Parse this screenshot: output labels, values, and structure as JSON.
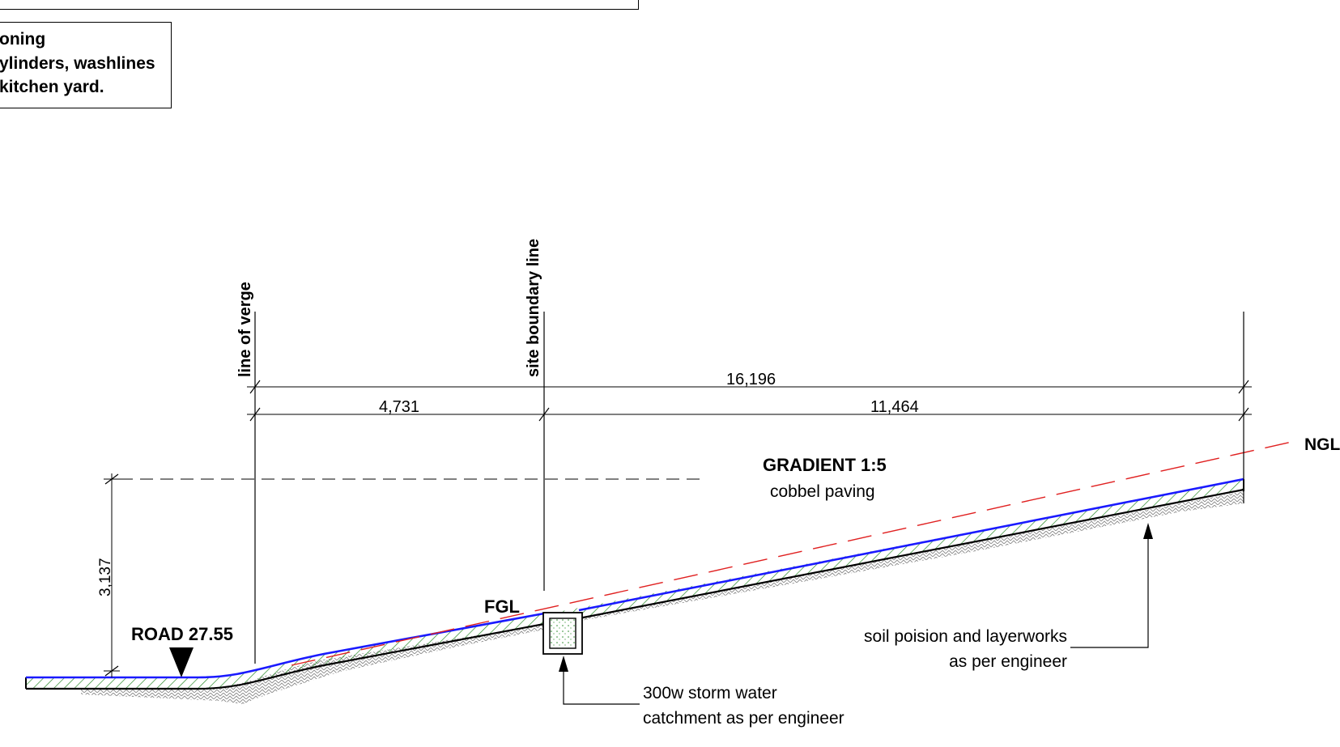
{
  "note": {
    "line1": "oning",
    "line2": "ylinders, washlines",
    "line3": " kitchen yard."
  },
  "labels": {
    "line_of_verge": "line of verge",
    "site_boundary_line": "site boundary line",
    "gradient": "GRADIENT 1:5",
    "cobbel_paving": "cobbel paving",
    "ngl": "NGL",
    "fgl": "FGL",
    "road_level": "ROAD 27.55",
    "soil_poison_1": "soil poision and layerworks",
    "soil_poison_2": "as per engineer",
    "storm_water_1": "300w storm water",
    "storm_water_2": "catchment as per engineer"
  },
  "dimensions": {
    "overall": "16,196",
    "verge_to_boundary": "4,731",
    "boundary_to_end": "11,464",
    "height": "3,137"
  },
  "colors": {
    "finished_surface": "#1a1aff",
    "ngl_line": "#e02020",
    "hatch_green": "#2a8a2a",
    "earth_hatch": "#888888",
    "linework": "#000000"
  }
}
